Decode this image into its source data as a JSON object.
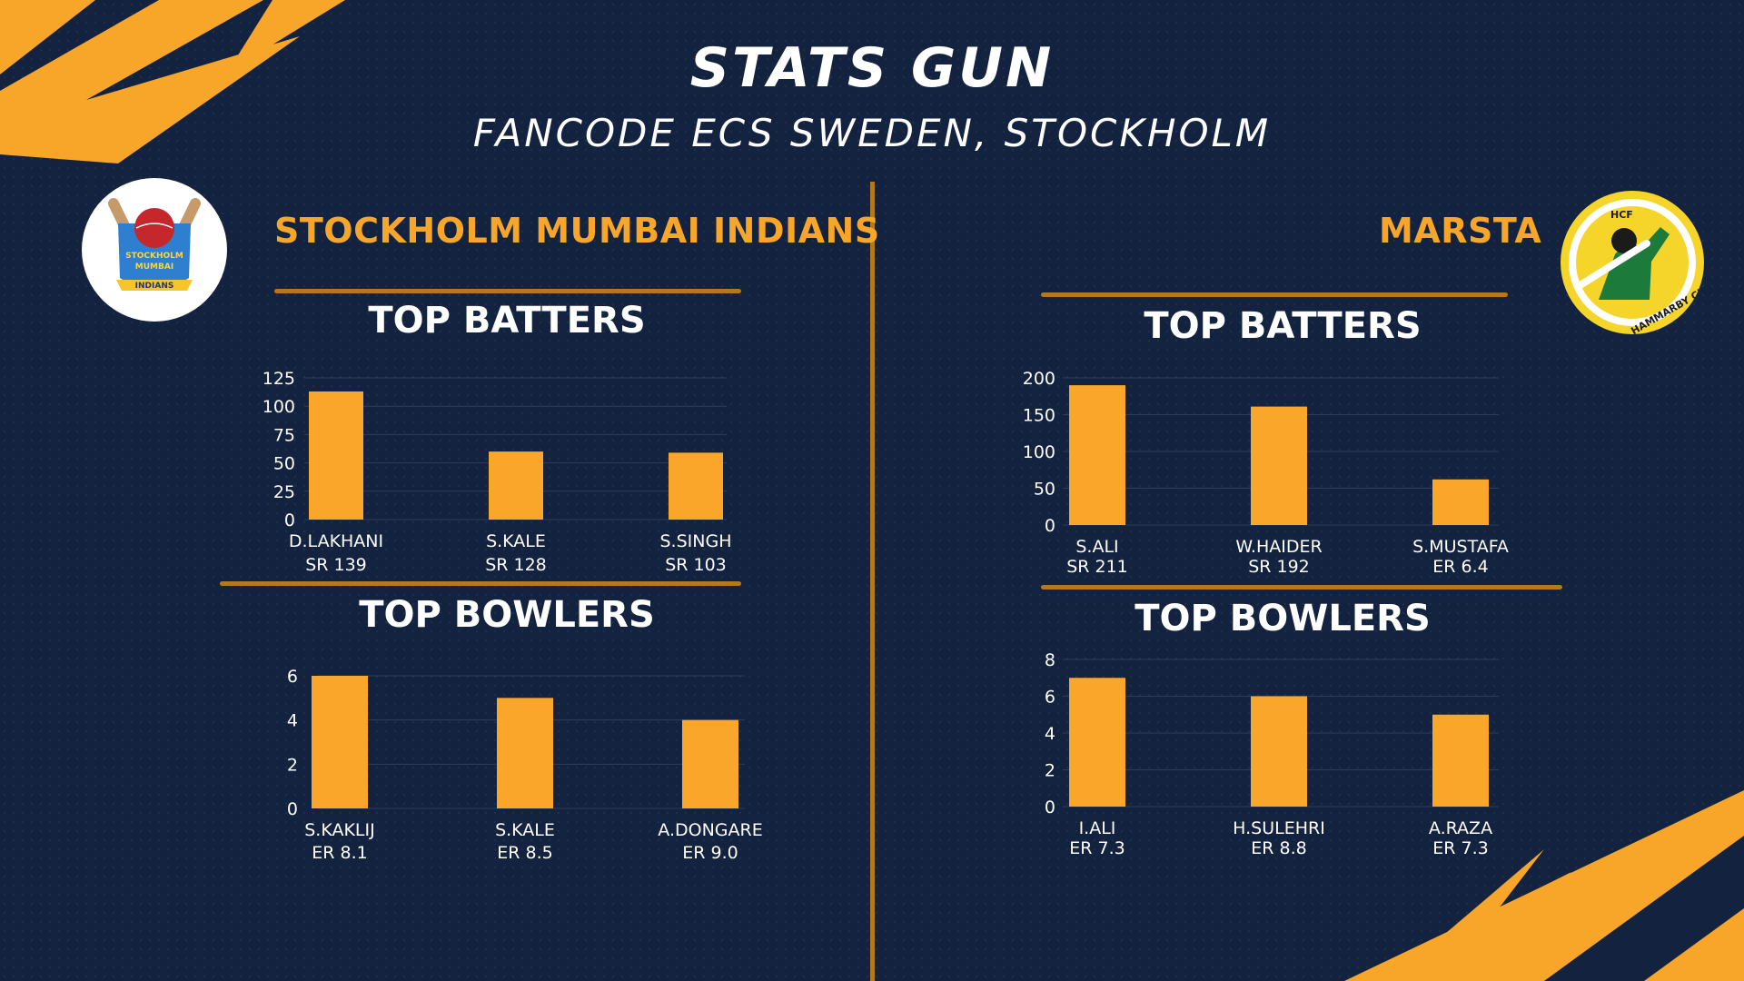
{
  "header": {
    "title": "STATS GUN",
    "subtitle": "FANCODE ECS SWEDEN, STOCKHOLM"
  },
  "colors": {
    "background": "#13233f",
    "accent": "#f7a629",
    "bar": "#faa62a",
    "divider": "#b27a1c"
  },
  "left_team": {
    "name": "STOCKHOLM MUMBAI INDIANS",
    "logo": {
      "line1": "STOCKHOLM",
      "line2": "MUMBAI",
      "line3": "INDIANS"
    },
    "batters_title": "TOP BATTERS",
    "bowlers_title": "TOP BOWLERS"
  },
  "right_team": {
    "name": "MARSTA",
    "logo": {
      "initials": "HCF",
      "ring": "HAMMARBY CF"
    },
    "batters_title": "TOP BATTERS",
    "bowlers_title": "TOP BOWLERS"
  },
  "chart_data": [
    {
      "id": "left-batters",
      "type": "bar",
      "categories": [
        "D.LAKHANI",
        "S.KALE",
        "S.SINGH"
      ],
      "sublabels": [
        "SR 139",
        "SR 128",
        "SR 103"
      ],
      "values": [
        113,
        60,
        59
      ],
      "ylim": [
        0,
        125
      ],
      "yticks": [
        0,
        25,
        50,
        75,
        100,
        125
      ],
      "grid": true
    },
    {
      "id": "left-bowlers",
      "type": "bar",
      "categories": [
        "S.KAKLIJ",
        "S.KALE",
        "A.DONGARE"
      ],
      "sublabels": [
        "ER 8.1",
        "ER 8.5",
        "ER 9.0"
      ],
      "values": [
        6,
        5,
        4
      ],
      "ylim": [
        0,
        6
      ],
      "yticks": [
        0,
        2,
        4,
        6
      ],
      "grid": true
    },
    {
      "id": "right-batters",
      "type": "bar",
      "categories": [
        "S.ALI",
        "W.HAIDER",
        "S.MUSTAFA"
      ],
      "sublabels": [
        "SR 211",
        "SR 192",
        "ER 6.4"
      ],
      "values": [
        190,
        161,
        62
      ],
      "ylim": [
        0,
        200
      ],
      "yticks": [
        0,
        50,
        100,
        150,
        200
      ],
      "grid": true
    },
    {
      "id": "right-bowlers",
      "type": "bar",
      "categories": [
        "I.ALI",
        "H.SULEHRI",
        "A.RAZA"
      ],
      "sublabels": [
        "ER 7.3",
        "ER 8.8",
        "ER 7.3"
      ],
      "values": [
        7,
        6,
        5
      ],
      "ylim": [
        0,
        8
      ],
      "yticks": [
        0,
        2,
        4,
        6,
        8
      ],
      "grid": true
    }
  ]
}
